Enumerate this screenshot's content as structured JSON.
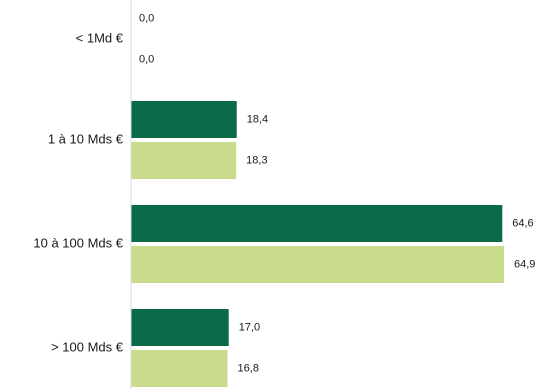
{
  "chart_data": {
    "type": "bar",
    "orientation": "horizontal",
    "categories": [
      "< 1Md €",
      "1 à 10 Mds €",
      "10 à 100 Mds €",
      "> 100 Mds €"
    ],
    "series": [
      {
        "values": [
          0.0,
          18.4,
          64.6,
          17.0
        ],
        "labels": [
          "0,0",
          "18,4",
          "64,6",
          "17,0"
        ],
        "color": "#0b6b49"
      },
      {
        "values": [
          0.0,
          18.3,
          64.9,
          16.8
        ],
        "labels": [
          "0,0",
          "18,3",
          "64,9",
          "16,8"
        ],
        "color": "#c9db8c"
      }
    ],
    "xlim": [
      0,
      70
    ],
    "grid": false,
    "title": "",
    "xlabel": "",
    "ylabel": ""
  }
}
